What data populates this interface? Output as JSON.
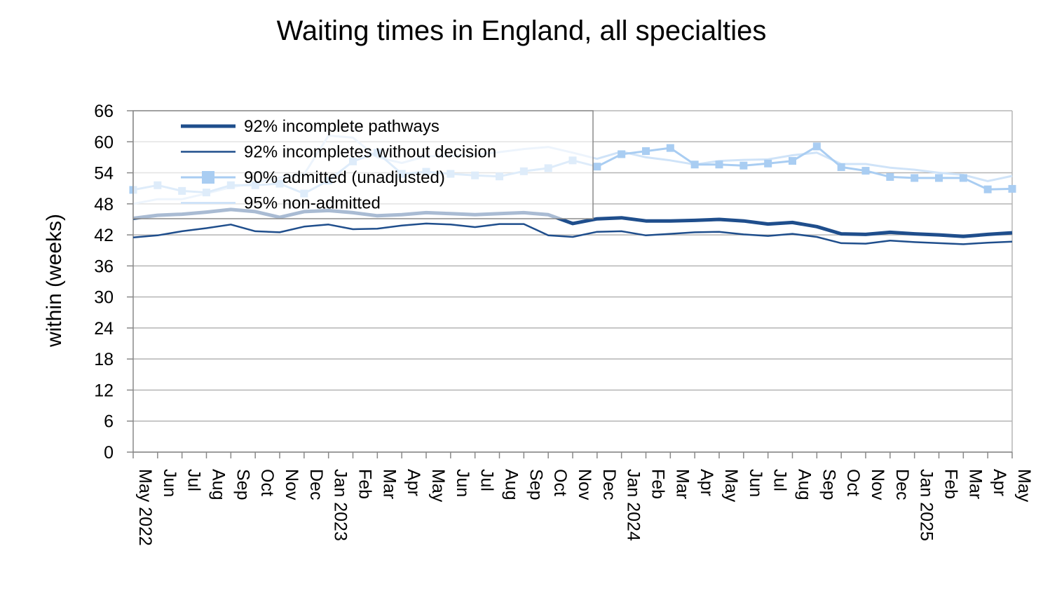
{
  "chart_data": {
    "type": "line",
    "title": "Waiting times in England, all specialties",
    "ylabel": "within  (weeks)",
    "xlabel": "",
    "ylim": [
      0,
      66
    ],
    "yticks": [
      0,
      6,
      12,
      18,
      24,
      30,
      36,
      42,
      48,
      54,
      60,
      66
    ],
    "grid": true,
    "legend_position": "top-left",
    "categories": [
      "May 2022",
      "Jun",
      "Jul",
      "Aug",
      "Sep",
      "Oct",
      "Nov",
      "Dec",
      "Jan 2023",
      "Feb",
      "Mar",
      "Apr",
      "May",
      "Jun",
      "Jul",
      "Aug",
      "Sep",
      "Oct",
      "Nov",
      "Dec",
      "Jan 2024",
      "Feb",
      "Mar",
      "Apr",
      "May",
      "Jun",
      "Jul",
      "Aug",
      "Sep",
      "Oct",
      "Nov",
      "Dec",
      "Jan 2025",
      "Feb",
      "Mar",
      "Apr",
      "May"
    ],
    "series": [
      {
        "name": "92% incomplete pathways",
        "color": "#1f4e8c",
        "width": 5,
        "marker": "none",
        "values": [
          45.2,
          45.8,
          46.0,
          46.4,
          46.9,
          46.5,
          45.4,
          46.5,
          46.7,
          46.3,
          45.7,
          45.9,
          46.3,
          46.1,
          45.9,
          46.1,
          46.3,
          45.9,
          44.2,
          45.1,
          45.3,
          44.7,
          44.7,
          44.8,
          45.0,
          44.7,
          44.1,
          44.4,
          43.6,
          42.2,
          42.1,
          42.5,
          42.2,
          42.0,
          41.7,
          42.1,
          42.4
        ]
      },
      {
        "name": "92% incompletes without decision",
        "color": "#1f4e8c",
        "width": 2.5,
        "marker": "none",
        "values": [
          41.5,
          41.9,
          42.7,
          43.3,
          44.0,
          42.7,
          42.5,
          43.6,
          44.0,
          43.1,
          43.2,
          43.8,
          44.2,
          44.0,
          43.5,
          44.1,
          44.1,
          41.9,
          41.6,
          42.6,
          42.7,
          41.9,
          42.2,
          42.5,
          42.6,
          42.1,
          41.8,
          42.2,
          41.6,
          40.4,
          40.3,
          40.9,
          40.6,
          40.4,
          40.2,
          40.5,
          40.7
        ]
      },
      {
        "name": "90% admitted (unadjusted)",
        "color": "#a9cdf2",
        "width": 3,
        "marker": "square",
        "values": [
          50.7,
          51.6,
          50.5,
          50.2,
          51.6,
          51.6,
          51.9,
          50.0,
          52.5,
          56.2,
          57.9,
          53.8,
          54.2,
          53.8,
          53.5,
          53.3,
          54.3,
          54.9,
          56.4,
          55.2,
          57.6,
          58.2,
          58.8,
          55.6,
          55.6,
          55.4,
          55.8,
          56.3,
          59.1,
          55.1,
          54.4,
          53.2,
          53.0,
          53.0,
          53.0,
          50.8,
          50.9
        ]
      },
      {
        "name": "95% non-admitted",
        "color": "#cfe3f8",
        "width": 3,
        "marker": "none",
        "values": [
          48.0,
          48.9,
          48.9,
          50.0,
          51.2,
          52.0,
          53.1,
          53.7,
          61.2,
          60.8,
          57.0,
          55.9,
          57.2,
          57.3,
          57.5,
          58.0,
          58.6,
          59.0,
          57.9,
          56.7,
          58.1,
          57.0,
          56.4,
          55.6,
          56.3,
          56.5,
          56.6,
          57.4,
          57.9,
          55.7,
          55.7,
          55.0,
          54.6,
          54.0,
          53.6,
          52.4,
          53.4
        ]
      }
    ]
  }
}
